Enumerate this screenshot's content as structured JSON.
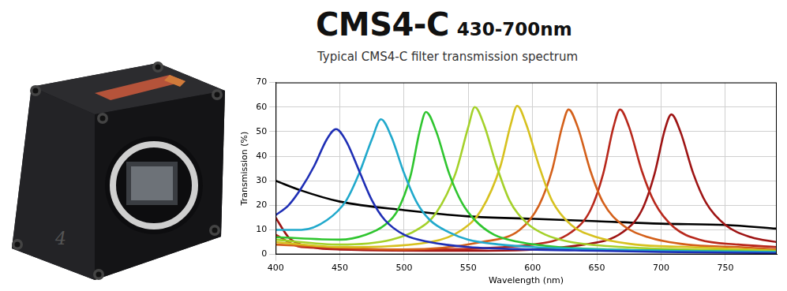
{
  "image": {
    "logo": "4"
  },
  "chart_data": {
    "type": "line",
    "title": "CMS4-C 430-700nm",
    "subtitle": "Typical CMS4-C filter transmission spectrum",
    "x_label": "Wavelength (nm)",
    "y_label": "Transmission (%)",
    "xlim": [
      400,
      790
    ],
    "xticks": [
      400,
      450,
      500,
      550,
      600,
      650,
      700,
      750
    ],
    "ylim": [
      0,
      70
    ],
    "yticks": [
      0,
      10,
      20,
      30,
      40,
      50,
      60,
      70
    ],
    "grid": true,
    "series": [
      {
        "color": "#1f2fb5",
        "x": [
          400,
          410,
          420,
          430,
          440,
          447,
          455,
          465,
          475,
          485,
          500,
          520,
          550,
          600,
          650,
          700,
          790
        ],
        "values": [
          16,
          20,
          27,
          36,
          47,
          51,
          46,
          34,
          22,
          14,
          8,
          5,
          3,
          2,
          1.5,
          1,
          0.5
        ]
      },
      {
        "color": "#21a9cc",
        "x": [
          400,
          420,
          440,
          455,
          465,
          475,
          482,
          490,
          500,
          510,
          520,
          535,
          550,
          575,
          600,
          650,
          700,
          790
        ],
        "values": [
          10,
          10,
          14,
          22,
          33,
          47,
          55,
          48,
          33,
          21,
          14,
          9,
          6,
          4,
          3,
          2,
          1.5,
          1
        ]
      },
      {
        "color": "#2fc52f",
        "x": [
          400,
          450,
          470,
          485,
          495,
          505,
          512,
          517,
          525,
          535,
          545,
          555,
          570,
          590,
          620,
          660,
          720,
          790
        ],
        "values": [
          7,
          6,
          8,
          12,
          18,
          32,
          50,
          58,
          50,
          33,
          21,
          14,
          8,
          5,
          3,
          2,
          1.5,
          1
        ]
      },
      {
        "color": "#a4d12a",
        "x": [
          400,
          450,
          490,
          510,
          525,
          540,
          550,
          555,
          562,
          572,
          582,
          595,
          610,
          630,
          670,
          720,
          790
        ],
        "values": [
          6,
          4,
          6,
          10,
          17,
          33,
          52,
          60,
          53,
          36,
          22,
          13,
          8,
          5,
          3,
          2,
          1.5
        ]
      },
      {
        "color": "#d7c11f",
        "x": [
          400,
          450,
          520,
          545,
          560,
          575,
          583,
          588,
          595,
          605,
          615,
          630,
          650,
          680,
          720,
          790
        ],
        "values": [
          5,
          3,
          5,
          10,
          18,
          36,
          53,
          60.5,
          53,
          36,
          22,
          12,
          7,
          4,
          3,
          1.5
        ]
      },
      {
        "color": "#d4601a",
        "x": [
          400,
          500,
          560,
          590,
          605,
          615,
          623,
          628,
          635,
          645,
          655,
          670,
          690,
          720,
          760,
          790
        ],
        "values": [
          4,
          2,
          5,
          10,
          20,
          34,
          52,
          59,
          52,
          34,
          21,
          12,
          7,
          4,
          3,
          2
        ]
      },
      {
        "color": "#b8281c",
        "x": [
          400,
          420,
          500,
          600,
          630,
          645,
          655,
          663,
          668,
          675,
          685,
          695,
          710,
          730,
          760,
          790
        ],
        "values": [
          8,
          3,
          2,
          4,
          9,
          18,
          33,
          52,
          59,
          52,
          34,
          21,
          11,
          6,
          4,
          3
        ]
      },
      {
        "color": "#9e1414",
        "x": [
          400,
          410,
          420,
          450,
          550,
          640,
          670,
          685,
          695,
          703,
          708,
          715,
          725,
          735,
          750,
          770,
          790
        ],
        "values": [
          15,
          7,
          4,
          2,
          1.5,
          4,
          9,
          18,
          33,
          51,
          57,
          50,
          33,
          21,
          12,
          7,
          5
        ]
      },
      {
        "color": "#000000",
        "x": [
          400,
          420,
          450,
          500,
          550,
          600,
          650,
          700,
          750,
          790
        ],
        "values": [
          30,
          26,
          21.5,
          18,
          15.5,
          14.5,
          13.5,
          12.5,
          12,
          10.5
        ]
      }
    ]
  }
}
